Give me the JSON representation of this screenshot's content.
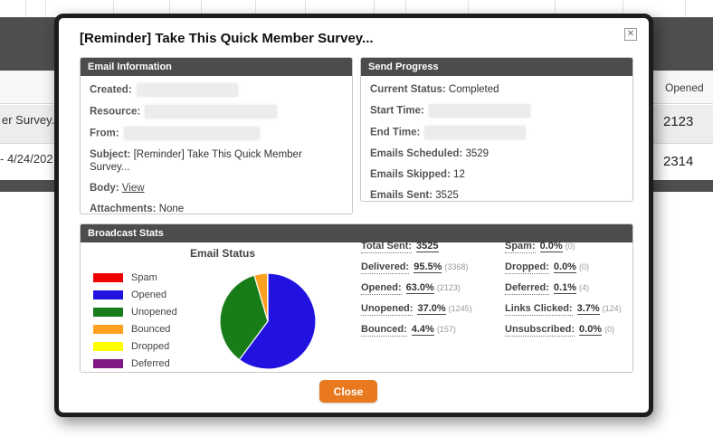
{
  "background_table": {
    "opened_header": "Opened",
    "rows": [
      {
        "left": "er Survey.",
        "right": "2123"
      },
      {
        "left": "- 4/24/202",
        "right": "2314"
      }
    ]
  },
  "modal": {
    "title": "[Reminder] Take This Quick Member Survey...",
    "email_information": {
      "header": "Email Information",
      "created_label": "Created:",
      "resource_label": "Resource:",
      "from_label": "From:",
      "subject_label": "Subject:",
      "subject_value": "[Reminder] Take This Quick Member Survey...",
      "body_label": "Body:",
      "body_link": "View",
      "attachments_label": "Attachments:",
      "attachments_value": "None"
    },
    "send_progress": {
      "header": "Send Progress",
      "current_status_label": "Current Status:",
      "current_status_value": "Completed",
      "start_time_label": "Start Time:",
      "end_time_label": "End Time:",
      "emails_scheduled_label": "Emails Scheduled:",
      "emails_scheduled_value": "3529",
      "emails_skipped_label": "Emails Skipped:",
      "emails_skipped_value": "12",
      "emails_sent_label": "Emails Sent:",
      "emails_sent_value": "3525"
    },
    "broadcast_stats": {
      "header": "Broadcast Stats",
      "stats_left": [
        {
          "label": "Total Sent:",
          "value": "3525",
          "count": ""
        },
        {
          "label": "Delivered:",
          "value": "95.5%",
          "count": "(3368)"
        },
        {
          "label": "Opened:",
          "value": "63.0%",
          "count": "(2123)"
        },
        {
          "label": "Unopened:",
          "value": "37.0%",
          "count": "(1245)"
        },
        {
          "label": "Bounced:",
          "value": "4.4%",
          "count": "(157)"
        }
      ],
      "stats_right": [
        {
          "label": "Spam:",
          "value": "0.0%",
          "count": "(0)"
        },
        {
          "label": "Dropped:",
          "value": "0.0%",
          "count": "(0)"
        },
        {
          "label": "Deferred:",
          "value": "0.1%",
          "count": "(4)"
        },
        {
          "label": "Links Clicked:",
          "value": "3.7%",
          "count": "(124)"
        },
        {
          "label": "Unsubscribed:",
          "value": "0.0%",
          "count": "(0)"
        }
      ]
    },
    "close_button_label": "Close"
  },
  "icons": {
    "close": "✕"
  },
  "colors": {
    "accent_orange": "#e8791f",
    "panel_header_bg": "#4d4c4c",
    "modal_border": "#1c1c1c"
  },
  "chart_data": {
    "type": "pie",
    "title": "Email Status",
    "legend_position": "left",
    "start_angle_deg": -90,
    "direction": "clockwise",
    "slices": [
      {
        "label": "Spam",
        "value": 0,
        "color": "#ee0000"
      },
      {
        "label": "Opened",
        "value": 2123,
        "color": "#2212e0"
      },
      {
        "label": "Unopened",
        "value": 1245,
        "color": "#187c18"
      },
      {
        "label": "Bounced",
        "value": 157,
        "color": "#ffa01e"
      },
      {
        "label": "Dropped",
        "value": 0,
        "color": "#ffff00"
      },
      {
        "label": "Deferred",
        "value": 4,
        "color": "#801885"
      }
    ]
  }
}
